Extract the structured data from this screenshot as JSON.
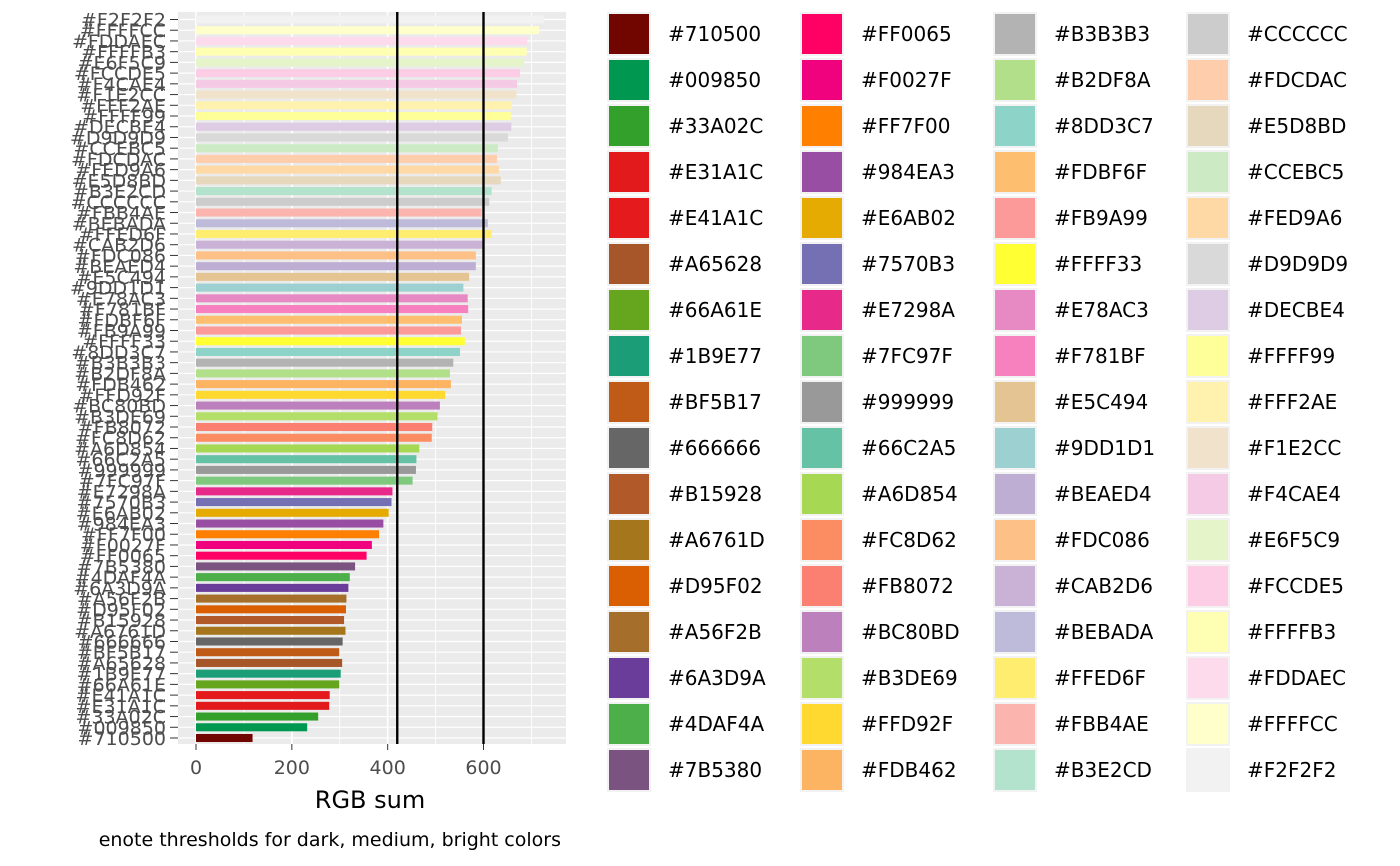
{
  "chart_data": {
    "type": "bar",
    "orientation": "horizontal",
    "xlabel": "RGB sum",
    "ylabel": "",
    "caption": "enote thresholds for dark, medium, bright colors",
    "xlim": [
      0,
      765
    ],
    "x_ticks": [
      0,
      200,
      400,
      600
    ],
    "reference_lines": [
      420,
      600
    ],
    "grid": true,
    "legend_position": "right",
    "categories": [
      "#710500",
      "#009850",
      "#33A02C",
      "#E31A1C",
      "#E41A1C",
      "#A65628",
      "#66A61E",
      "#1B9E77",
      "#BF5B17",
      "#666666",
      "#B15928",
      "#A6761D",
      "#D95F02",
      "#A56F2B",
      "#6A3D9A",
      "#4DAF4A",
      "#7B5380",
      "#FF0065",
      "#F0027F",
      "#FF7F00",
      "#984EA3",
      "#E6AB02",
      "#7570B3",
      "#E7298A",
      "#7FC97F",
      "#999999",
      "#66C2A5",
      "#A6D854",
      "#FC8D62",
      "#FB8072",
      "#BC80BD",
      "#B3DE69",
      "#FFD92F",
      "#FDB462",
      "#B3B3B3",
      "#B2DF8A",
      "#8DD3C7",
      "#FDBF6F",
      "#FB9A99",
      "#FFFF33",
      "#E78AC3",
      "#F781BF",
      "#E5C494",
      "#9DD1D1",
      "#BEAED4",
      "#FDC086",
      "#CAB2D6",
      "#BEBADA",
      "#FFED6F",
      "#FBB4AE",
      "#B3E2CD",
      "#CCCCCC",
      "#FDCDAC",
      "#E5D8BD",
      "#CCEBC5",
      "#FED9A6",
      "#D9D9D9",
      "#DECBE4",
      "#FFFF99",
      "#FFF2AE",
      "#F1E2CC",
      "#F4CAE4",
      "#E6F5C9",
      "#FCCDE5",
      "#FFFFB3",
      "#FDDAEC",
      "#FFFFCC",
      "#F2F2F2"
    ],
    "values": [
      118,
      232,
      255,
      278,
      279,
      305,
      299,
      302,
      299,
      306,
      309,
      312,
      313,
      314,
      318,
      321,
      332,
      356,
      367,
      382,
      391,
      402,
      408,
      410,
      452,
      459,
      460,
      466,
      492,
      493,
      509,
      504,
      520,
      532,
      537,
      530,
      551,
      555,
      553,
      561,
      567,
      568,
      570,
      558,
      584,
      584,
      601,
      609,
      617,
      596,
      617,
      612,
      628,
      636,
      630,
      632,
      651,
      658,
      657,
      659,
      669,
      670,
      685,
      676,
      690,
      691,
      716,
      726
    ],
    "colors": [
      "#710500",
      "#009850",
      "#33A02C",
      "#E31A1C",
      "#E41A1C",
      "#A65628",
      "#66A61E",
      "#1B9E77",
      "#BF5B17",
      "#666666",
      "#B15928",
      "#A6761D",
      "#D95F02",
      "#A56F2B",
      "#6A3D9A",
      "#4DAF4A",
      "#7B5380",
      "#FF0065",
      "#F0027F",
      "#FF7F00",
      "#984EA3",
      "#E6AB02",
      "#7570B3",
      "#E7298A",
      "#7FC97F",
      "#999999",
      "#66C2A5",
      "#A6D854",
      "#FC8D62",
      "#FB8072",
      "#BC80BD",
      "#B3DE69",
      "#FFD92F",
      "#FDB462",
      "#B3B3B3",
      "#B2DF8A",
      "#8DD3C7",
      "#FDBF6F",
      "#FB9A99",
      "#FFFF33",
      "#E78AC3",
      "#F781BF",
      "#E5C494",
      "#9DD1D1",
      "#BEAED4",
      "#FDC086",
      "#CAB2D6",
      "#BEBADA",
      "#FFED6F",
      "#FBB4AE",
      "#B3E2CD",
      "#CCCCCC",
      "#FDCDAC",
      "#E5D8BD",
      "#CCEBC5",
      "#FED9A6",
      "#D9D9D9",
      "#DECBE4",
      "#FFFF99",
      "#FFF2AE",
      "#F1E2CC",
      "#F4CAE4",
      "#E6F5C9",
      "#FCCDE5",
      "#FFFFB3",
      "#FDDAEC",
      "#FFFFCC",
      "#F2F2F2"
    ],
    "bar_order": [
      "#710500",
      "#009850",
      "#33A02C",
      "#E31A1C",
      "#E41A1C",
      "#66A61E",
      "#1B9E77",
      "#A65628",
      "#BF5B17",
      "#666666",
      "#A6761D",
      "#B15928",
      "#D95F02",
      "#A56F2B",
      "#6A3D9A",
      "#4DAF4A",
      "#7B5380",
      "#FF0065",
      "#F0027F",
      "#FF7F00",
      "#984EA3",
      "#E6AB02",
      "#7570B3",
      "#E7298A",
      "#7FC97F",
      "#999999",
      "#66C2A5",
      "#A6D854",
      "#FC8D62",
      "#FB8072",
      "#B3DE69",
      "#BC80BD",
      "#FFD92F",
      "#FDB462",
      "#B2DF8A",
      "#B3B3B3",
      "#8DD3C7",
      "#FFFF33",
      "#FB9A99",
      "#FDBF6F",
      "#F781BF",
      "#E78AC3",
      "#9DD1D1",
      "#E5C494",
      "#BEAED4",
      "#FDC086",
      "#CAB2D6",
      "#FFED6F",
      "#BEBADA",
      "#FBB4AE",
      "#CCCCCC",
      "#B3E2CD",
      "#E5D8BD",
      "#FED9A6",
      "#FDCDAC",
      "#CCEBC5",
      "#D9D9D9",
      "#DECBE4",
      "#FFFF99",
      "#FFF2AE",
      "#F1E2CC",
      "#F4CAE4",
      "#FCCDE5",
      "#E6F5C9",
      "#FFFFB3",
      "#FDDAEC",
      "#FFFFCC",
      "#F2F2F2"
    ],
    "legend_columns": [
      [
        "#710500",
        "#009850",
        "#33A02C",
        "#E31A1C",
        "#E41A1C",
        "#A65628",
        "#66A61E",
        "#1B9E77",
        "#BF5B17",
        "#666666",
        "#B15928",
        "#A6761D",
        "#D95F02",
        "#A56F2B",
        "#6A3D9A",
        "#4DAF4A",
        "#7B5380"
      ],
      [
        "#FF0065",
        "#F0027F",
        "#FF7F00",
        "#984EA3",
        "#E6AB02",
        "#7570B3",
        "#E7298A",
        "#7FC97F",
        "#999999",
        "#66C2A5",
        "#A6D854",
        "#FC8D62",
        "#FB8072",
        "#BC80BD",
        "#B3DE69",
        "#FFD92F",
        "#FDB462"
      ],
      [
        "#B3B3B3",
        "#B2DF8A",
        "#8DD3C7",
        "#FDBF6F",
        "#FB9A99",
        "#FFFF33",
        "#E78AC3",
        "#F781BF",
        "#E5C494",
        "#9DD1D1",
        "#BEAED4",
        "#FDC086",
        "#CAB2D6",
        "#BEBADA",
        "#FFED6F",
        "#FBB4AE",
        "#B3E2CD"
      ],
      [
        "#CCCCCC",
        "#FDCDAC",
        "#E5D8BD",
        "#CCEBC5",
        "#FED9A6",
        "#D9D9D9",
        "#DECBE4",
        "#FFFF99",
        "#FFF2AE",
        "#F1E2CC",
        "#F4CAE4",
        "#E6F5C9",
        "#FCCDE5",
        "#FFFFB3",
        "#FDDAEC",
        "#FFFFCC",
        "#F2F2F2"
      ]
    ]
  }
}
